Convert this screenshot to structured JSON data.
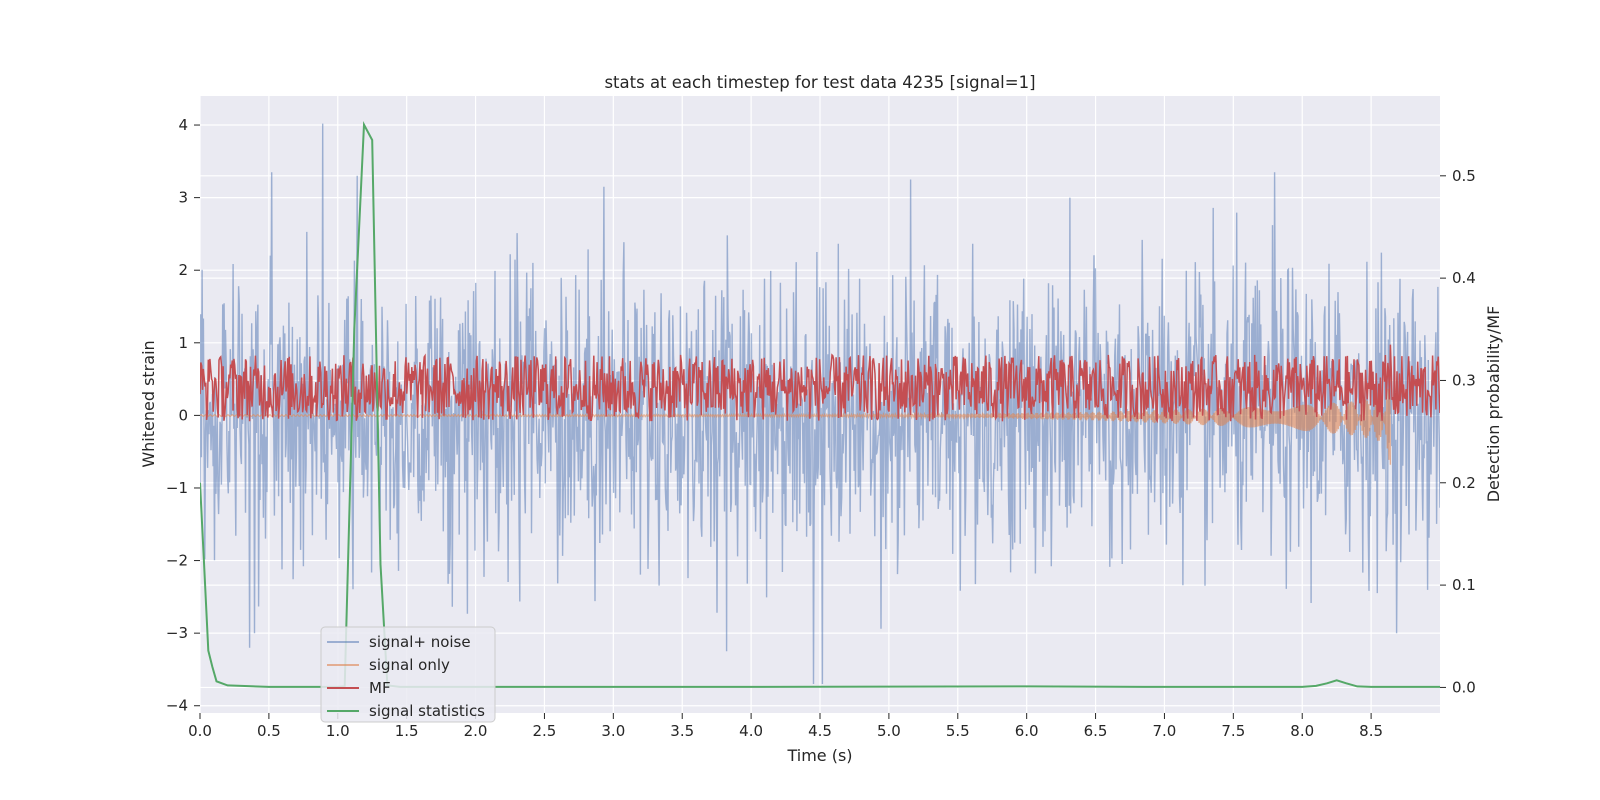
{
  "chart_data": {
    "type": "line",
    "title": "stats at each timestep for test data 4235 [signal=1]",
    "xlabel": "Time (s)",
    "ylabel_left": "Whitened strain",
    "ylabel_right": "Detection probability/MF",
    "xlim": [
      0.0,
      9.0
    ],
    "ylim_left": [
      -4.1,
      4.4
    ],
    "ylim_right": [
      -0.025,
      0.578
    ],
    "x_ticks": [
      "0.0",
      "0.5",
      "1.0",
      "1.5",
      "2.0",
      "2.5",
      "3.0",
      "3.5",
      "4.0",
      "4.5",
      "5.0",
      "5.5",
      "6.0",
      "6.5",
      "7.0",
      "7.5",
      "8.0",
      "8.5"
    ],
    "y_ticks_left": [
      "4",
      "3",
      "2",
      "1",
      "0",
      "−1",
      "−2",
      "−3",
      "−4"
    ],
    "y_ticks_right": [
      "0.5",
      "0.4",
      "0.3",
      "0.2",
      "0.1",
      "0.0"
    ],
    "grid": true,
    "legend_position": "lower-left",
    "series": [
      {
        "name": "signal+ noise",
        "axis": "left",
        "color": "#4c72b0",
        "description_kind": "dense noise trace",
        "approx_range": [
          -3.7,
          4.0
        ],
        "notable_peaks": [
          {
            "x": 0.89,
            "y": 4.02
          },
          {
            "x": 0.52,
            "y": 3.35
          },
          {
            "x": 1.14,
            "y": 3.3
          },
          {
            "x": 2.93,
            "y": 3.15
          },
          {
            "x": 5.16,
            "y": 3.25
          },
          {
            "x": 7.8,
            "y": 3.35
          },
          {
            "x": 4.45,
            "y": -3.7
          },
          {
            "x": 4.52,
            "y": -3.7
          },
          {
            "x": 0.36,
            "y": -3.2
          },
          {
            "x": 3.82,
            "y": -3.25
          }
        ]
      },
      {
        "name": "signal only",
        "axis": "left",
        "color": "#dd8452",
        "description_kind": "chirp",
        "envelope": [
          [
            0.0,
            0.01
          ],
          [
            4.5,
            0.015
          ],
          [
            5.5,
            0.025
          ],
          [
            6.5,
            0.06
          ],
          [
            7.5,
            0.13
          ],
          [
            8.0,
            0.18
          ],
          [
            8.4,
            0.24
          ],
          [
            8.6,
            0.32
          ],
          [
            8.64,
            0.6
          ]
        ],
        "merger_time": 8.64
      },
      {
        "name": "MF",
        "axis": "right",
        "color": "#c44e52",
        "description_kind": "dense band",
        "band_right_axis": [
          0.26,
          0.325
        ],
        "notable_peaks": [
          {
            "x": 0.08,
            "y": 0.31
          },
          {
            "x": 1.09,
            "y": 0.318
          },
          {
            "x": 8.64,
            "y": 0.335
          }
        ]
      },
      {
        "name": "signal statistics",
        "axis": "right",
        "color": "#55a868",
        "x": [
          0.0,
          0.03,
          0.06,
          0.09,
          0.12,
          0.2,
          0.3,
          0.5,
          1.0,
          1.05,
          1.12,
          1.19,
          1.25,
          1.31,
          1.36,
          1.45,
          2.0,
          4.0,
          6.0,
          7.0,
          8.0,
          8.1,
          8.18,
          8.25,
          8.32,
          8.4,
          8.5,
          9.0
        ],
        "y": [
          0.2,
          0.12,
          0.036,
          0.02,
          0.006,
          0.002,
          0.0015,
          0.0005,
          0.0005,
          0.001,
          0.35,
          0.55,
          0.535,
          0.12,
          0.002,
          0.0005,
          0.0005,
          0.0005,
          0.001,
          0.0005,
          0.0005,
          0.0015,
          0.004,
          0.007,
          0.004,
          0.001,
          0.0005,
          0.0005
        ]
      }
    ]
  }
}
